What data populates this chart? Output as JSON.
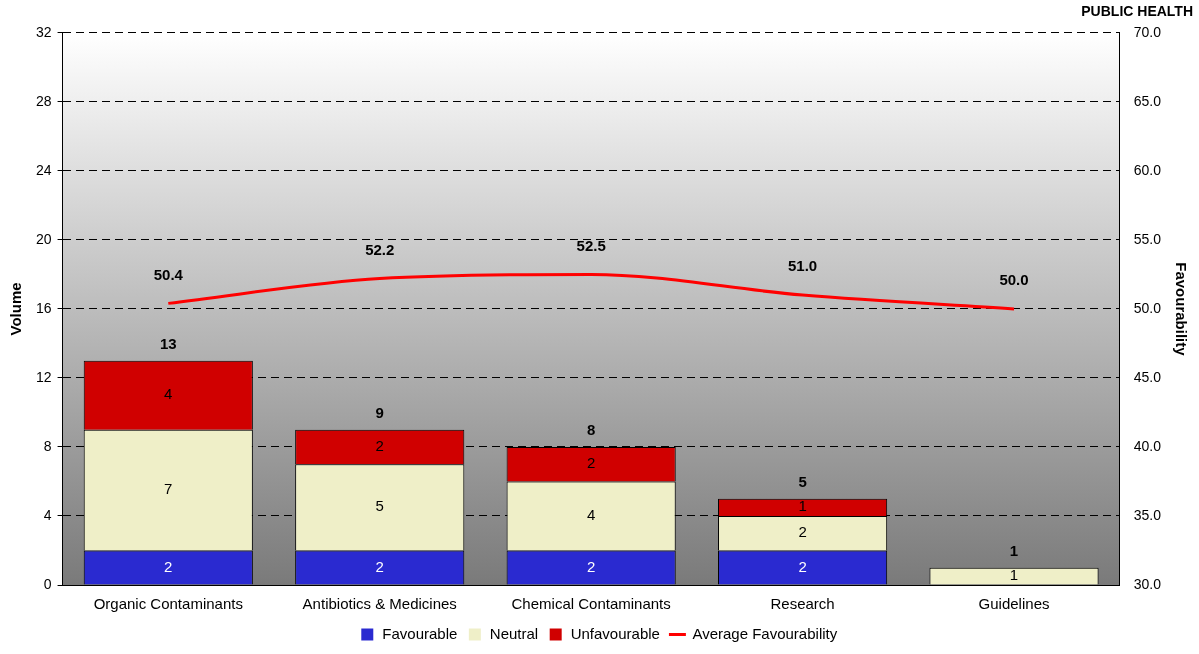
{
  "chart_data": {
    "type": "bar",
    "title": "PUBLIC HEALTH",
    "ylabel": "Volume",
    "y2label": "Favourability",
    "categories": [
      "Organic Contaminants",
      "Antibiotics & Medicines",
      "Chemical Contaminants",
      "Research",
      "Guidelines"
    ],
    "stacked": true,
    "series": [
      {
        "name": "Favourable",
        "color": "#2a2ad0",
        "values": [
          2,
          2,
          2,
          2,
          null
        ]
      },
      {
        "name": "Neutral",
        "color": "#efefc8",
        "values": [
          7,
          5,
          4,
          2,
          1
        ]
      },
      {
        "name": "Unfavourable",
        "color": "#d00000",
        "values": [
          4,
          2,
          2,
          1,
          null
        ]
      },
      {
        "name": "Average Favourability",
        "type": "line",
        "axis": "y2",
        "color": "#ff0000",
        "values": [
          50.4,
          52.2,
          52.5,
          51.0,
          50.0
        ],
        "value_labels": [
          "50.4",
          "52.2",
          "52.5",
          "51.0",
          "50.0"
        ]
      }
    ],
    "totals": [
      "13",
      "9",
      "8",
      "5",
      "1"
    ],
    "data_labels": true,
    "ylim": [
      0,
      32
    ],
    "yticks": [
      0,
      4,
      8,
      12,
      16,
      20,
      24,
      28,
      32
    ],
    "y2lim": [
      30,
      70
    ],
    "y2ticks": [
      {
        "value": 30,
        "label": "30.0"
      },
      {
        "value": 35,
        "label": "35.0"
      },
      {
        "value": 40,
        "label": "40.0"
      },
      {
        "value": 45,
        "label": "45.0"
      },
      {
        "value": 50,
        "label": "50.0"
      },
      {
        "value": 55,
        "label": "55.0"
      },
      {
        "value": 60,
        "label": "60.0"
      },
      {
        "value": 65,
        "label": "65.0"
      },
      {
        "value": 70,
        "label": "70.0"
      }
    ],
    "grid": "y",
    "legend": "bottom",
    "marker": "none",
    "line_style": "solid"
  }
}
